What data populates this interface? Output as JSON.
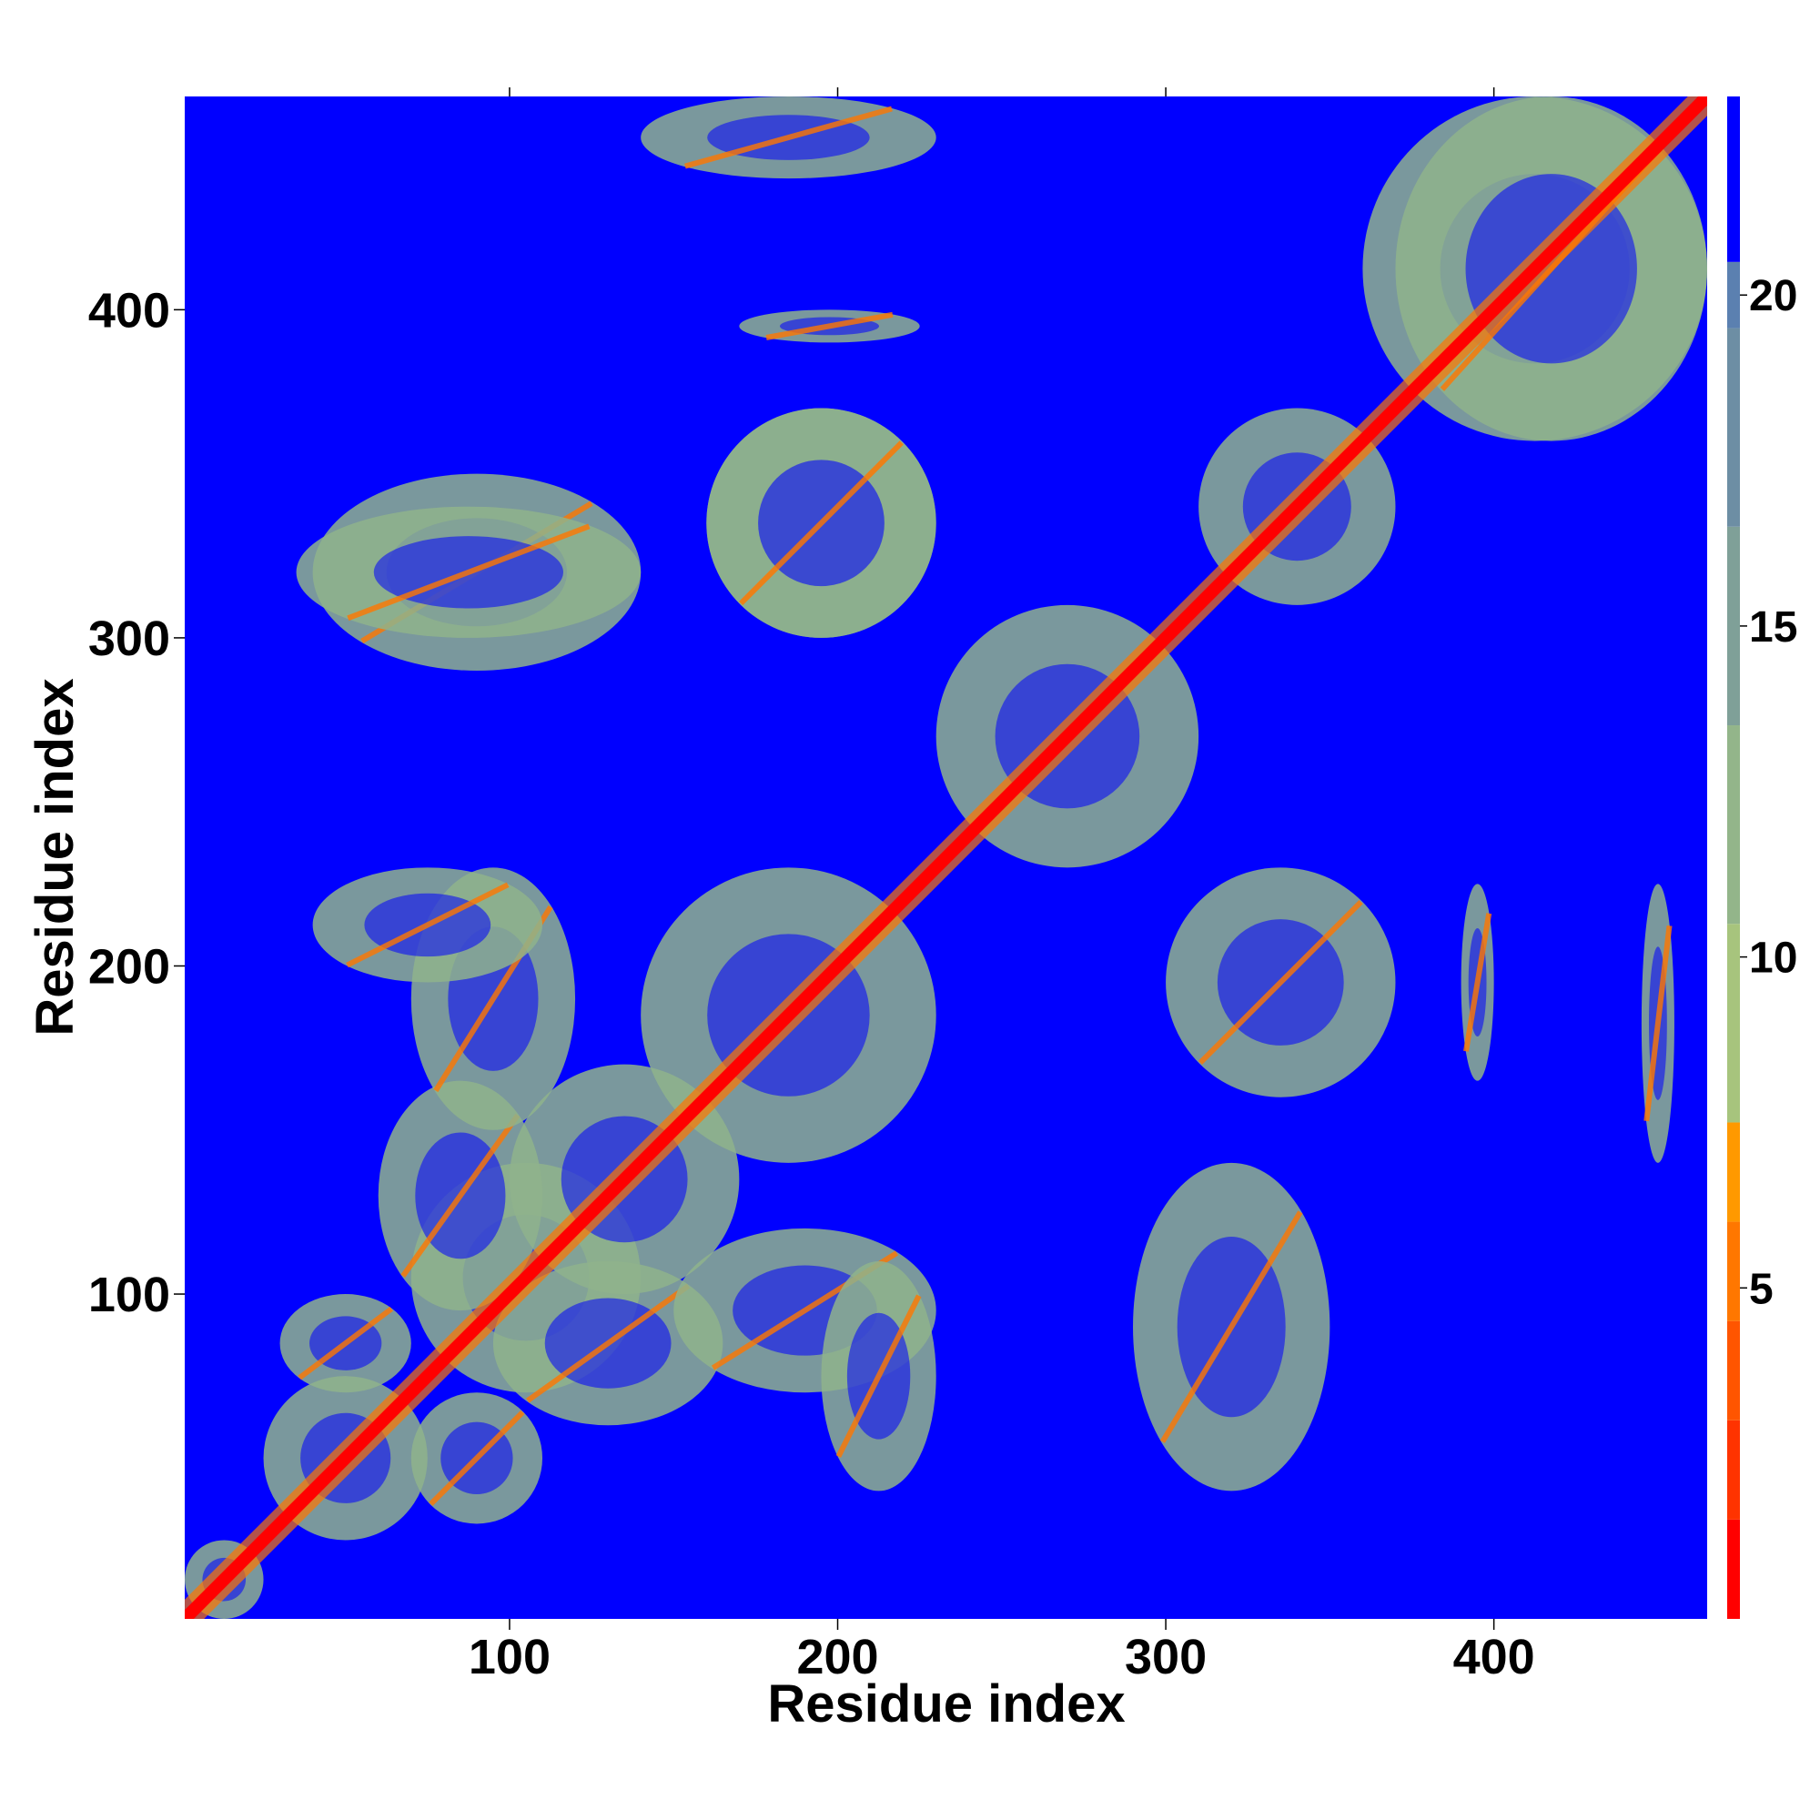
{
  "chart_data": {
    "type": "heatmap",
    "title": "",
    "xlabel": "Residue index",
    "ylabel": "Residue index",
    "xlim": [
      1,
      465
    ],
    "ylim": [
      1,
      465
    ],
    "x_ticks": [
      100,
      200,
      300,
      400
    ],
    "y_ticks": [
      100,
      200,
      300,
      400
    ],
    "colorbar": {
      "ticks": [
        5,
        10,
        15,
        20
      ],
      "range": [
        0,
        23
      ],
      "colors": [
        "#ff0000",
        "#ff3300",
        "#ff5500",
        "#ff7700",
        "#ff9900",
        "#a7c47d",
        "#93b58a",
        "#7fa098",
        "#6d8ea4",
        "#5b80b0",
        "#0000ff"
      ],
      "bounds": [
        0,
        1.5,
        3,
        4.5,
        6,
        7.5,
        10.5,
        13.5,
        16.5,
        19.5,
        20.5,
        23
      ]
    },
    "colors": {
      "background": "#0000ff",
      "contact_far": "#8fb38c",
      "contact_near": "#ff7700",
      "diagonal": "#ff0000"
    },
    "blocks": [
      {
        "x": [
          1,
          25
        ],
        "y": [
          1,
          25
        ]
      },
      {
        "x": [
          25,
          75
        ],
        "y": [
          25,
          75
        ]
      },
      {
        "x": [
          70,
          140
        ],
        "y": [
          70,
          140
        ]
      },
      {
        "x": [
          100,
          170
        ],
        "y": [
          100,
          170
        ]
      },
      {
        "x": [
          140,
          230
        ],
        "y": [
          140,
          230
        ]
      },
      {
        "x": [
          230,
          310
        ],
        "y": [
          230,
          310
        ]
      },
      {
        "x": [
          310,
          370
        ],
        "y": [
          310,
          370
        ]
      },
      {
        "x": [
          360,
          465
        ],
        "y": [
          360,
          465
        ]
      }
    ],
    "contacts": [
      {
        "x": [
          30,
          70
        ],
        "y": [
          70,
          100
        ]
      },
      {
        "x": [
          70,
          110
        ],
        "y": [
          30,
          70
        ]
      },
      {
        "x": [
          95,
          165
        ],
        "y": [
          60,
          110
        ]
      },
      {
        "x": [
          60,
          110
        ],
        "y": [
          95,
          165
        ]
      },
      {
        "x": [
          70,
          120
        ],
        "y": [
          150,
          230
        ]
      },
      {
        "x": [
          150,
          230
        ],
        "y": [
          70,
          120
        ]
      },
      {
        "x": [
          195,
          230
        ],
        "y": [
          40,
          110
        ]
      },
      {
        "x": [
          40,
          110
        ],
        "y": [
          195,
          230
        ]
      },
      {
        "x": [
          290,
          350
        ],
        "y": [
          40,
          140
        ]
      },
      {
        "x": [
          40,
          140
        ],
        "y": [
          290,
          350
        ]
      },
      {
        "x": [
          300,
          370
        ],
        "y": [
          160,
          230
        ]
      },
      {
        "x": [
          160,
          230
        ],
        "y": [
          300,
          370
        ]
      },
      {
        "x": [
          35,
          140
        ],
        "y": [
          300,
          340
        ]
      },
      {
        "x": [
          160,
          230
        ],
        "y": [
          300,
          370
        ]
      },
      {
        "x": [
          140,
          230
        ],
        "y": [
          440,
          465
        ]
      },
      {
        "x": [
          445,
          455
        ],
        "y": [
          140,
          225
        ]
      },
      {
        "x": [
          390,
          400
        ],
        "y": [
          165,
          225
        ]
      },
      {
        "x": [
          170,
          225
        ],
        "y": [
          390,
          400
        ]
      },
      {
        "x": [
          370,
          465
        ],
        "y": [
          360,
          465
        ]
      }
    ]
  }
}
